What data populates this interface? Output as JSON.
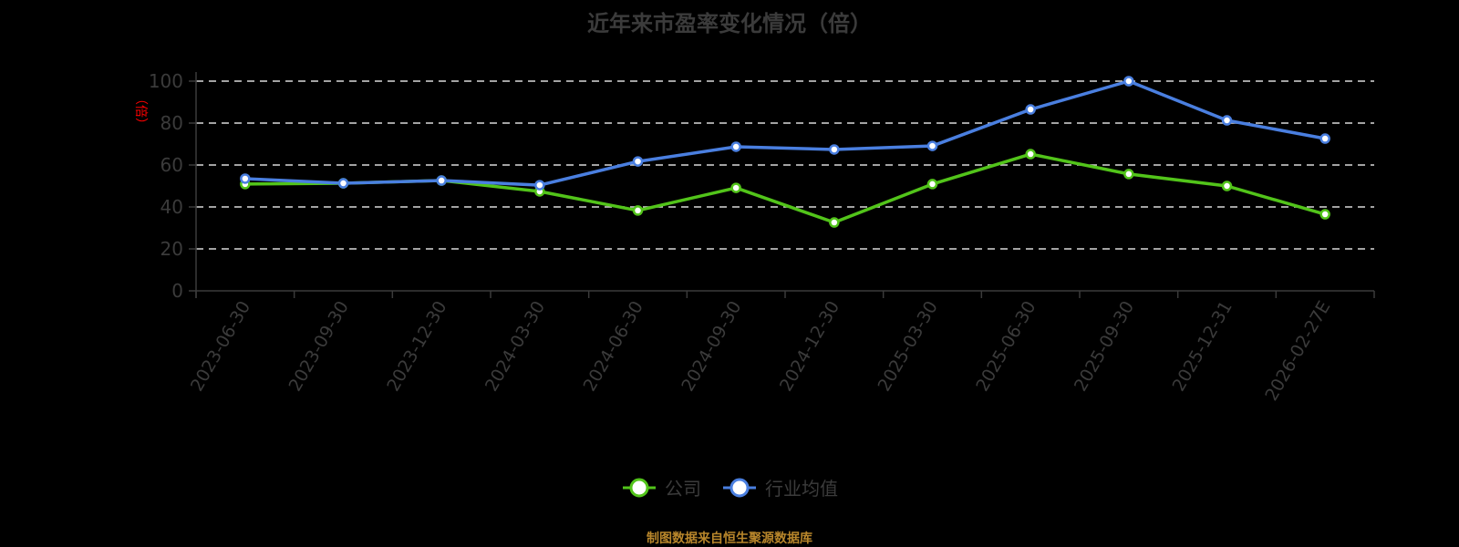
{
  "title": "近年来市盈率变化情况（倍）",
  "footer": "制图数据来自恒生聚源数据库",
  "colors": {
    "company": "#52c41a",
    "industry": "#4a7fe0",
    "axis": "#3b3b3b",
    "grid": "#d9d9d9",
    "ylabel": "#ff0000"
  },
  "legend": [
    {
      "label": "公司"
    },
    {
      "label": "行业均值"
    }
  ],
  "chart_data": {
    "type": "line",
    "title": "近年来市盈率变化情况（倍）",
    "xlabel": "",
    "ylabel": "（倍）",
    "ylim": [
      0,
      100
    ],
    "yticks": [
      0,
      20,
      40,
      60,
      80,
      100
    ],
    "grid": true,
    "legend_position": "bottom",
    "categories": [
      "2023-06-30",
      "2023-09-30",
      "2023-12-30",
      "2024-03-30",
      "2024-06-30",
      "2024-09-30",
      "2024-12-30",
      "2025-03-30",
      "2025-06-30",
      "2025-09-30",
      "2025-12-31",
      "2026-02-27E"
    ],
    "series": [
      {
        "name": "公司",
        "values": [
          50.9,
          51.3,
          52.6,
          47.4,
          38.3,
          49.1,
          32.6,
          50.9,
          65.2,
          55.7,
          50.0,
          36.5
        ]
      },
      {
        "name": "行业均值",
        "values": [
          53.5,
          51.3,
          52.6,
          50.4,
          61.7,
          68.7,
          67.4,
          69.1,
          86.5,
          100.0,
          81.3,
          72.6
        ]
      }
    ]
  }
}
